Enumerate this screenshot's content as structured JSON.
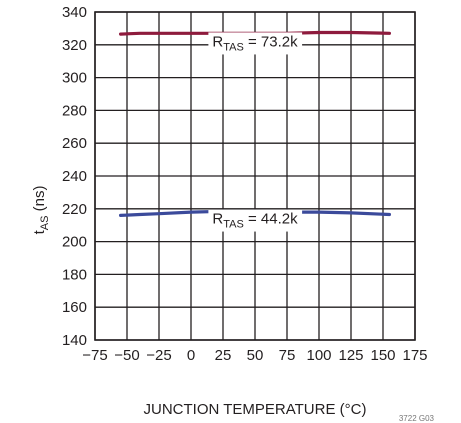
{
  "chart_data": {
    "type": "line",
    "title": "",
    "xlabel": "JUNCTION TEMPERATURE (°C)",
    "ylabel": {
      "main": "t",
      "sub": "AS",
      "suffix": " (ns)"
    },
    "xlim": [
      -75,
      175
    ],
    "ylim": [
      140,
      340
    ],
    "xticks": [
      -75,
      -50,
      -25,
      0,
      25,
      50,
      75,
      100,
      125,
      150,
      175
    ],
    "yticks": [
      140,
      160,
      180,
      200,
      220,
      240,
      260,
      280,
      300,
      320,
      340
    ],
    "grid": true,
    "series": [
      {
        "name": "",
        "color": "#8e1b3d",
        "x": [
          -55,
          -40,
          -25,
          0,
          25,
          50,
          75,
          100,
          125,
          155
        ],
        "y": [
          326.5,
          327,
          327,
          327,
          327,
          327,
          327,
          327.5,
          327.5,
          327
        ]
      },
      {
        "name": "",
        "color": "#3b4a9b",
        "x": [
          -55,
          -40,
          -25,
          0,
          25,
          50,
          75,
          100,
          125,
          155
        ],
        "y": [
          216,
          216.5,
          217,
          218,
          218.5,
          218.5,
          218,
          218,
          217.5,
          216.5
        ]
      }
    ],
    "annotations": [
      {
        "main": "R",
        "sub": "TAS",
        "suffix": " = 73.2k",
        "x": 50,
        "y": 319
      },
      {
        "main": "R",
        "sub": "TAS",
        "suffix": " = 44.2k",
        "x": 50,
        "y": 211
      }
    ],
    "figure_code": "3722 G03"
  }
}
